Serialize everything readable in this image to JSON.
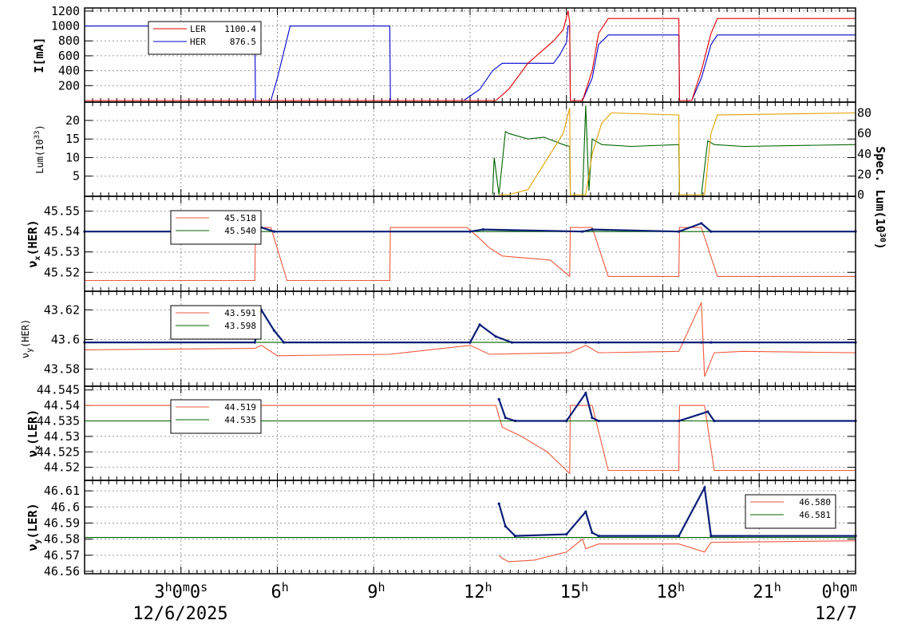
{
  "colors": {
    "red": "#e00000",
    "blue": "#0000cc",
    "orange": "#e0a000",
    "green": "#006400",
    "salmon": "#f05a3c",
    "navy": "#0a1e78",
    "grid": "#999999"
  },
  "x_axis": {
    "tick_labels": [
      {
        "t": 3,
        "main": "3",
        "sup": "h",
        "rest": "0",
        "sup2": "m",
        "rest2": "0",
        "sup3": "s"
      },
      {
        "t": 6,
        "main": "6",
        "sup": "h"
      },
      {
        "t": 9,
        "main": "9",
        "sup": "h"
      },
      {
        "t": 12,
        "main": "12",
        "sup": "h"
      },
      {
        "t": 15,
        "main": "15",
        "sup": "h"
      },
      {
        "t": 18,
        "main": "18",
        "sup": "h"
      },
      {
        "t": 21,
        "main": "21",
        "sup": "h"
      },
      {
        "t": 24,
        "main": "0",
        "sup": "h",
        "rest": "0",
        "sup2": "m"
      }
    ],
    "date_left": "12/6/2025",
    "date_right": "12/7",
    "range_hours": [
      0,
      24
    ]
  },
  "chart_data": [
    {
      "type": "line",
      "ylabel": "I[mA]",
      "yticks": [
        "200",
        "400",
        "600",
        "800",
        "1000",
        "1200"
      ],
      "ylim": [
        0,
        1220
      ],
      "legend": [
        {
          "name": "LER",
          "value": "1100.4",
          "color": "red"
        },
        {
          "name": "HER",
          "value": "876.5",
          "color": "blue"
        }
      ],
      "series": [
        {
          "name": "HER",
          "color": "blue",
          "x": [
            0,
            5.3,
            5.32,
            5.8,
            6.0,
            6.4,
            9.5,
            9.52,
            11.8,
            12.3,
            12.7,
            13.0,
            13.4,
            14.6,
            14.8,
            15.0,
            15.05,
            15.1,
            15.12,
            15.5,
            15.8,
            16.0,
            16.3,
            18.5,
            18.52,
            18.9,
            19.2,
            19.5,
            19.7,
            24
          ],
          "y": [
            1000,
            1000,
            0,
            0,
            300,
            1000,
            1000,
            0,
            0,
            150,
            400,
            500,
            500,
            500,
            620,
            780,
            1000,
            1000,
            0,
            0,
            300,
            750,
            880,
            880,
            0,
            0,
            300,
            750,
            880,
            880
          ]
        },
        {
          "name": "LER",
          "color": "red",
          "x": [
            0,
            12.8,
            13.2,
            13.8,
            14.2,
            14.6,
            14.9,
            15.05,
            15.1,
            15.12,
            15.5,
            15.8,
            16.0,
            16.3,
            18.5,
            18.52,
            18.9,
            19.2,
            19.5,
            19.7,
            24
          ],
          "y": [
            0,
            0,
            150,
            500,
            650,
            800,
            950,
            1200,
            1050,
            0,
            0,
            400,
            900,
            1100,
            1100,
            0,
            0,
            400,
            900,
            1100,
            1100
          ]
        }
      ]
    },
    {
      "type": "line",
      "ylabel": "Lum(10^33)",
      "yticks": [
        "5",
        "10",
        "15",
        "20"
      ],
      "ylim": [
        0,
        24.5
      ],
      "y2label": "Spec. Lum(10^30)",
      "y2ticks": [
        "0",
        "20",
        "40",
        "60",
        "80"
      ],
      "y2lim": [
        0,
        89
      ],
      "series": [
        {
          "name": "Lum",
          "color": "green",
          "x": [
            12.7,
            12.75,
            12.9,
            13.1,
            13.2,
            13.8,
            14.3,
            14.9,
            15.1,
            15.12,
            15.5,
            15.6,
            15.7,
            15.8,
            16.1,
            17.0,
            18.5,
            18.52,
            19.2,
            19.4,
            19.6,
            20.5,
            24
          ],
          "y": [
            0,
            10,
            0,
            17,
            16.5,
            15,
            15.5,
            13.5,
            13,
            0,
            0,
            24,
            1,
            15,
            13.5,
            13,
            13.5,
            0,
            0,
            14.5,
            13.5,
            13,
            13.5
          ]
        },
        {
          "name": "Spec. Lum",
          "color": "orange",
          "axis": "right",
          "x": [
            12.9,
            13.2,
            13.8,
            14.2,
            14.6,
            14.9,
            15.1,
            15.12,
            15.6,
            15.8,
            16.1,
            16.4,
            18.5,
            18.52,
            19.3,
            19.5,
            19.7,
            24
          ],
          "y": [
            0,
            0,
            5,
            25,
            45,
            60,
            85,
            0,
            0,
            40,
            70,
            80,
            78,
            0,
            0,
            60,
            78,
            80
          ]
        }
      ]
    },
    {
      "type": "line",
      "ylabel": "νx(HER)",
      "yticks": [
        "45.52",
        "45.53",
        "45.54",
        "45.55"
      ],
      "ylim": [
        45.5115,
        45.5565
      ],
      "legend": [
        {
          "name": "",
          "value": "45.518",
          "color": "salmon"
        },
        {
          "name": "",
          "value": "45.540",
          "color": "green"
        }
      ],
      "series": [
        {
          "name": "setting",
          "color": "salmon",
          "x": [
            0,
            5.3,
            5.32,
            5.8,
            6.3,
            9.5,
            9.52,
            11.9,
            12.2,
            12.6,
            13.0,
            14.5,
            15.1,
            15.12,
            15.8,
            16.3,
            18.5,
            18.52,
            19.2,
            19.7,
            24
          ],
          "y": [
            45.516,
            45.516,
            45.542,
            45.542,
            45.516,
            45.516,
            45.542,
            45.542,
            45.538,
            45.532,
            45.528,
            45.526,
            45.518,
            45.542,
            45.542,
            45.518,
            45.518,
            45.542,
            45.542,
            45.518,
            45.518
          ]
        },
        {
          "name": "target",
          "color": "green",
          "x": [
            0,
            24
          ],
          "y": [
            45.54,
            45.54
          ]
        },
        {
          "name": "measured",
          "color": "navy",
          "x": [
            0,
            5.3,
            5.5,
            5.9,
            12.0,
            12.4,
            15.5,
            15.8,
            18.5,
            19.2,
            19.5,
            24
          ],
          "y": [
            45.54,
            45.54,
            45.542,
            45.54,
            45.54,
            45.541,
            45.54,
            45.541,
            45.54,
            45.544,
            45.54,
            45.54
          ]
        }
      ]
    },
    {
      "type": "line",
      "ylabel": "νy(HER)",
      "yticks": [
        "43.58",
        "43.6",
        "43.62"
      ],
      "ylim": [
        43.5695,
        43.6315
      ],
      "legend": [
        {
          "name": "",
          "value": "43.591",
          "color": "salmon"
        },
        {
          "name": "",
          "value": "43.598",
          "color": "green"
        }
      ],
      "series": [
        {
          "name": "setting",
          "color": "salmon",
          "x": [
            0,
            5.3,
            5.5,
            6.0,
            9.5,
            12.0,
            12.6,
            15.1,
            15.6,
            16.0,
            18.5,
            19.2,
            19.3,
            19.6,
            20.5,
            24
          ],
          "y": [
            43.593,
            43.594,
            43.596,
            43.589,
            43.59,
            43.596,
            43.59,
            43.591,
            43.596,
            43.591,
            43.592,
            43.625,
            43.575,
            43.591,
            43.592,
            43.591
          ]
        },
        {
          "name": "target",
          "color": "green",
          "x": [
            0,
            24
          ],
          "y": [
            43.598,
            43.598
          ]
        },
        {
          "name": "measured",
          "color": "navy",
          "x": [
            0,
            5.3,
            5.5,
            5.9,
            6.2,
            12.0,
            12.3,
            12.8,
            13.3,
            15.6,
            16.0,
            19.2,
            19.5,
            24
          ],
          "y": [
            43.598,
            43.598,
            43.62,
            43.606,
            43.598,
            43.598,
            43.61,
            43.602,
            43.598,
            43.598,
            43.598,
            43.598,
            43.598,
            43.598
          ]
        }
      ]
    },
    {
      "type": "line",
      "ylabel": "νx(LER)",
      "yticks": [
        "44.52",
        "44.525",
        "44.53",
        "44.535",
        "44.54",
        "44.545"
      ],
      "ylim": [
        44.5163,
        44.5457
      ],
      "legend": [
        {
          "name": "",
          "value": "44.519",
          "color": "salmon"
        },
        {
          "name": "",
          "value": "44.535",
          "color": "green"
        }
      ],
      "series": [
        {
          "name": "setting",
          "color": "salmon",
          "x": [
            0,
            12.8,
            13.0,
            13.6,
            14.4,
            15.1,
            15.12,
            15.8,
            16.3,
            18.5,
            18.52,
            19.3,
            19.6,
            24
          ],
          "y": [
            44.54,
            44.54,
            44.533,
            44.53,
            44.525,
            44.518,
            44.54,
            44.54,
            44.519,
            44.519,
            44.54,
            44.54,
            44.519,
            44.519
          ]
        },
        {
          "name": "target",
          "color": "green",
          "x": [
            0,
            24
          ],
          "y": [
            44.535,
            44.535
          ]
        },
        {
          "name": "measured",
          "color": "navy",
          "x": [
            12.9,
            13.1,
            13.4,
            15.0,
            15.6,
            15.8,
            16.0,
            18.5,
            19.4,
            19.6,
            24
          ],
          "y": [
            44.542,
            44.536,
            44.535,
            44.535,
            44.544,
            44.536,
            44.535,
            44.535,
            44.538,
            44.535,
            44.535
          ]
        }
      ]
    },
    {
      "type": "line",
      "ylabel": "νy(LER)",
      "yticks": [
        "46.56",
        "46.57",
        "46.58",
        "46.59",
        "46.6",
        "46.61"
      ],
      "ylim": [
        46.5595,
        46.6155
      ],
      "legend": [
        {
          "name": "",
          "value": "46.580",
          "color": "salmon"
        },
        {
          "name": "",
          "value": "46.581",
          "color": "green"
        }
      ],
      "series": [
        {
          "name": "setting",
          "color": "salmon",
          "x": [
            12.9,
            13.0,
            13.2,
            14.0,
            15.0,
            15.5,
            15.6,
            16.0,
            18.5,
            19.3,
            19.5,
            24
          ],
          "y": [
            46.57,
            46.568,
            46.566,
            46.567,
            46.572,
            46.58,
            46.574,
            46.577,
            46.577,
            46.572,
            46.578,
            46.579
          ]
        },
        {
          "name": "target",
          "color": "green",
          "x": [
            0,
            24
          ],
          "y": [
            46.581,
            46.581
          ]
        },
        {
          "name": "measured",
          "color": "navy",
          "x": [
            12.9,
            13.1,
            13.4,
            15.0,
            15.6,
            15.8,
            16.0,
            18.5,
            19.3,
            19.5,
            24
          ],
          "y": [
            46.602,
            46.588,
            46.582,
            46.583,
            46.597,
            46.584,
            46.582,
            46.582,
            46.612,
            46.582,
            46.582
          ]
        }
      ]
    }
  ]
}
